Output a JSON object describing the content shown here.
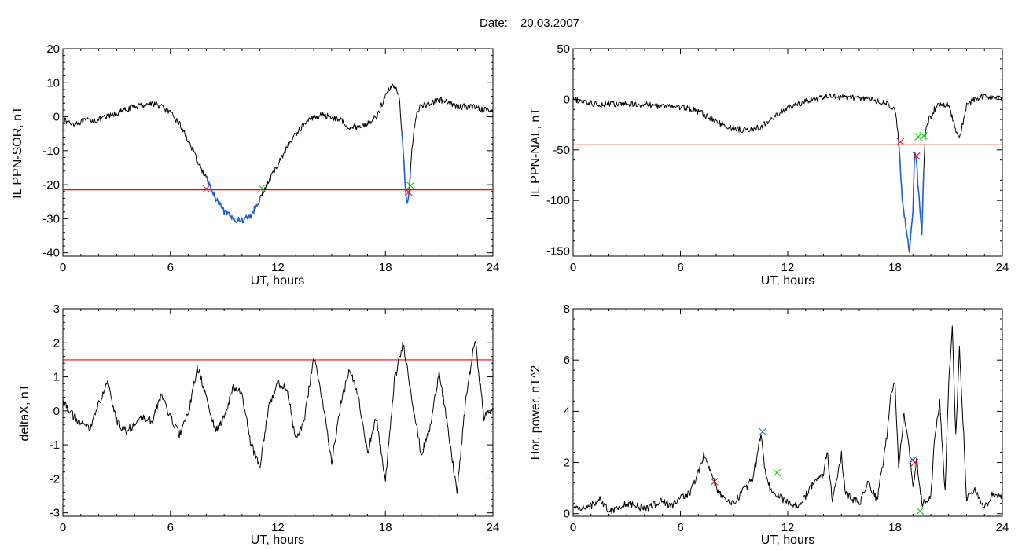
{
  "figure": {
    "title_label": "Date:",
    "title_value": "20.03.2007"
  },
  "chart_data": [
    {
      "id": "sor",
      "type": "line",
      "xlabel": "UT, hours",
      "ylabel": "IL PPN-SOR, nT",
      "xlim": [
        0,
        24
      ],
      "ylim": [
        -41,
        20
      ],
      "xticks": [
        0,
        6,
        12,
        18,
        24
      ],
      "yticks": [
        -40,
        -30,
        -20,
        -10,
        0,
        10,
        20
      ],
      "threshold": -21.5,
      "threshold_color": "#ff0000",
      "line_color": "#000000",
      "highlight_color": "#1f5fd0",
      "highlight_ranges": [
        [
          8.0,
          11.0
        ],
        [
          18.9,
          19.4
        ]
      ],
      "series": [
        {
          "x": [
            0,
            0.5,
            1,
            1.5,
            2,
            2.5,
            3,
            3.5,
            4,
            4.5,
            5,
            5.5,
            6,
            6.5,
            7,
            7.5,
            8,
            8.5,
            9,
            9.5,
            10,
            10.5,
            11,
            11.5,
            12,
            12.5,
            13,
            13.5,
            14,
            14.5,
            15,
            15.5,
            16,
            16.5,
            17,
            17.5,
            18,
            18.3,
            18.6,
            18.8,
            19,
            19.1,
            19.2,
            19.3,
            19.4,
            19.6,
            19.8,
            20,
            20.5,
            21,
            21.5,
            22,
            22.5,
            23,
            23.5,
            24
          ],
          "y": [
            -1,
            -2,
            -1.5,
            -1,
            -1,
            0,
            1,
            2,
            3,
            3.5,
            4,
            3,
            1,
            -2,
            -7,
            -13,
            -18,
            -24,
            -28,
            -30,
            -30.5,
            -29,
            -24,
            -19,
            -14,
            -9,
            -5,
            -2,
            0,
            0.5,
            0,
            -1,
            -3,
            -3,
            -2,
            0,
            6,
            9,
            9,
            4,
            -10,
            -20,
            -26,
            -24,
            -15,
            -3,
            2,
            3,
            4,
            5,
            4,
            3,
            3,
            3,
            2,
            2
          ],
          "jitter": 0.9
        }
      ],
      "markers": [
        {
          "x": 8.0,
          "y": -21.2,
          "color": "#ff0000"
        },
        {
          "x": 11.1,
          "y": -21.0,
          "color": "#00cc00"
        },
        {
          "x": 19.3,
          "y": -22.2,
          "color": "#ff0000"
        },
        {
          "x": 19.4,
          "y": -20.3,
          "color": "#00cc00"
        }
      ]
    },
    {
      "id": "nal",
      "type": "line",
      "xlabel": "UT, hours",
      "ylabel": "IL PPN-NAL, nT",
      "xlim": [
        0,
        24
      ],
      "ylim": [
        -155,
        50
      ],
      "xticks": [
        0,
        6,
        12,
        18,
        24
      ],
      "yticks": [
        -150,
        -100,
        -50,
        0,
        50
      ],
      "threshold": -45,
      "threshold_color": "#ff0000",
      "line_color": "#000000",
      "highlight_color": "#1f5fd0",
      "highlight_ranges": [
        [
          18.2,
          19.6
        ]
      ],
      "series": [
        {
          "x": [
            0,
            0.5,
            1,
            1.5,
            2,
            2.5,
            3,
            3.5,
            4,
            4.5,
            5,
            5.5,
            6,
            6.5,
            7,
            7.5,
            8,
            8.5,
            9,
            9.5,
            10,
            10.5,
            11,
            11.5,
            12,
            12.5,
            13,
            13.5,
            14,
            14.5,
            15,
            15.5,
            16,
            16.5,
            17,
            17.5,
            18,
            18.2,
            18.4,
            18.6,
            18.8,
            19,
            19.1,
            19.2,
            19.3,
            19.4,
            19.5,
            19.6,
            19.7,
            19.9,
            20.2,
            20.5,
            21,
            21.3,
            21.6,
            22,
            22.5,
            23,
            23.5,
            24
          ],
          "y": [
            0,
            -2,
            -4,
            -5,
            -4,
            -5,
            -5,
            -5,
            -5,
            -6,
            -7,
            -7,
            -8,
            -9,
            -12,
            -17,
            -22,
            -26,
            -29,
            -30,
            -30,
            -27,
            -21,
            -14,
            -9,
            -5,
            -2,
            0,
            2,
            3,
            2,
            2,
            1,
            1,
            -2,
            -4,
            -10,
            -40,
            -100,
            -125,
            -150,
            -110,
            -50,
            -60,
            -90,
            -110,
            -135,
            -70,
            -30,
            -20,
            -10,
            -5,
            -5,
            -25,
            -40,
            -5,
            0,
            3,
            2,
            0
          ],
          "jitter": 3.0
        }
      ],
      "markers": [
        {
          "x": 18.3,
          "y": -42,
          "color": "#ff0000"
        },
        {
          "x": 19.2,
          "y": -56,
          "color": "#ff0000"
        },
        {
          "x": 19.3,
          "y": -37,
          "color": "#00cc00"
        },
        {
          "x": 19.6,
          "y": -36,
          "color": "#00cc00"
        }
      ]
    },
    {
      "id": "deltax",
      "type": "line",
      "xlabel": "UT, hours",
      "ylabel": "deltaX, nT",
      "xlim": [
        0,
        24
      ],
      "ylim": [
        -3.1,
        3
      ],
      "xticks": [
        0,
        6,
        12,
        18,
        24
      ],
      "yticks": [
        -3,
        -2,
        -1,
        0,
        1,
        2,
        3
      ],
      "threshold": 1.5,
      "threshold_color": "#ff0000",
      "line_color": "#000000",
      "highlight_ranges": [],
      "series": [
        {
          "x": [
            0,
            0.5,
            1,
            1.5,
            2,
            2.5,
            3,
            3.5,
            4,
            4.5,
            5,
            5.5,
            6,
            6.5,
            7,
            7.5,
            8,
            8.5,
            9,
            9.5,
            10,
            10.5,
            11,
            11.5,
            12,
            12.5,
            13,
            13.5,
            14,
            14.5,
            15,
            15.5,
            16,
            16.5,
            17,
            17.5,
            18,
            18.5,
            19,
            19.5,
            20,
            20.5,
            21,
            21.5,
            22,
            22.5,
            23,
            23.5,
            24
          ],
          "y": [
            0.3,
            -0.1,
            -0.4,
            -0.5,
            0.2,
            0.8,
            -0.3,
            -0.6,
            -0.4,
            -0.2,
            -0.3,
            0.5,
            -0.2,
            -0.7,
            -0.1,
            1.3,
            0.4,
            -0.6,
            -0.2,
            0.7,
            0.5,
            -1,
            -1.6,
            0.2,
            0.8,
            0.7,
            -0.9,
            -0.2,
            1.6,
            0.3,
            -1.5,
            0.2,
            1.2,
            0.4,
            -1.2,
            -0.2,
            -2.1,
            0.9,
            2.0,
            0.3,
            -1.3,
            -0.5,
            1.2,
            -0.6,
            -2.4,
            0.4,
            2.1,
            -0.2,
            0.1
          ],
          "jitter": 0.12
        }
      ],
      "markers": []
    },
    {
      "id": "power",
      "type": "line",
      "xlabel": "UT, hours",
      "ylabel": "Hor. power, nT^2",
      "xlim": [
        0,
        24
      ],
      "ylim": [
        -0.1,
        8
      ],
      "xticks": [
        0,
        6,
        12,
        18,
        24
      ],
      "yticks": [
        0,
        2,
        4,
        6,
        8
      ],
      "line_color": "#000000",
      "highlight_ranges": [],
      "series": [
        {
          "x": [
            0,
            1,
            1.5,
            2,
            3,
            4,
            5,
            5.5,
            6,
            6.5,
            7,
            7.3,
            7.6,
            8,
            8.5,
            9,
            9.5,
            10,
            10.3,
            10.5,
            10.7,
            11,
            11.5,
            12,
            12.5,
            13,
            13.5,
            14,
            14.2,
            14.5,
            15,
            15.2,
            15.5,
            16,
            16.5,
            17,
            17.5,
            17.8,
            18,
            18.2,
            18.5,
            18.8,
            19,
            19.2,
            19.5,
            20,
            20.2,
            20.5,
            20.8,
            21,
            21.2,
            21.4,
            21.6,
            22,
            22.5,
            23,
            23.5,
            24
          ],
          "y": [
            0.2,
            0.3,
            0.6,
            0.1,
            0.4,
            0.2,
            0.5,
            0.3,
            0.6,
            0.8,
            1.6,
            2.3,
            1.8,
            1.0,
            0.5,
            0.4,
            0.9,
            1.3,
            2.2,
            3.2,
            1.8,
            1.0,
            0.7,
            0.4,
            0.3,
            0.7,
            1.3,
            1.5,
            2.5,
            0.5,
            2.3,
            0.9,
            0.6,
            0.4,
            1.2,
            0.5,
            2.8,
            4.8,
            5.1,
            1.8,
            3.9,
            2.5,
            1.0,
            2.2,
            0.4,
            0.6,
            2.8,
            4.4,
            0.8,
            5.2,
            7.2,
            3.0,
            6.6,
            0.6,
            0.9,
            0.2,
            0.8,
            0.6
          ],
          "jitter": 0.15
        }
      ],
      "markers": [
        {
          "x": 7.9,
          "y": 1.25,
          "color": "#ff0000"
        },
        {
          "x": 10.6,
          "y": 3.2,
          "color": "#1f5fd0"
        },
        {
          "x": 11.4,
          "y": 1.6,
          "color": "#00cc00"
        },
        {
          "x": 19.0,
          "y": 2.1,
          "color": "#1f5fd0"
        },
        {
          "x": 19.1,
          "y": 2.0,
          "color": "#ff0000"
        },
        {
          "x": 19.4,
          "y": 0.1,
          "color": "#00cc00"
        }
      ]
    }
  ]
}
